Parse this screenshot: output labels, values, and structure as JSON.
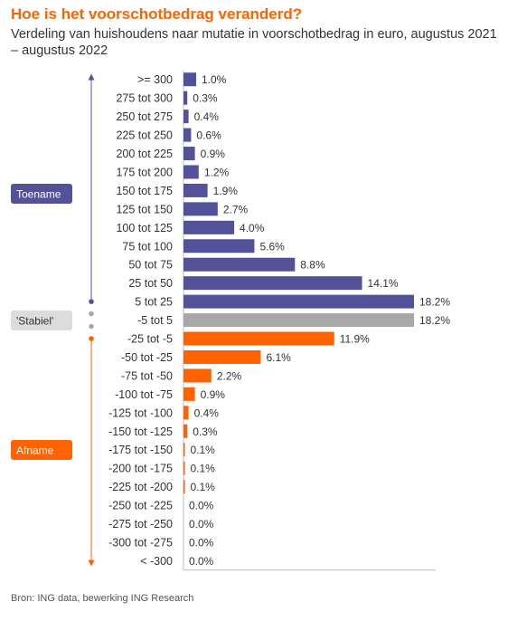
{
  "title": "Hoe is het voorschotbedrag veranderd?",
  "subtitle": "Verdeling van huishoudens naar mutatie in voorschotbedrag in euro, augustus 2021 – augustus 2022",
  "source": "Bron: ING data, bewerking ING Research",
  "colors": {
    "increase": "#525199",
    "stable": "#A8A8A8",
    "decrease": "#FF6200",
    "title": "#FF6200",
    "axis": "#BDBDBD"
  },
  "chart_data": {
    "type": "bar",
    "orientation": "horizontal",
    "unit": "%",
    "xlim": [
      0,
      25
    ],
    "grid": false,
    "groups": [
      {
        "name": "Toename",
        "color": "#525199",
        "categories": [
          ">= 300",
          "275 tot 300",
          "250 tot 275",
          "225 tot 250",
          "200 tot 225",
          "175 tot 200",
          "150 tot 175",
          "125 tot 150",
          "100 tot 125",
          "75 tot 100",
          "50 tot 75",
          "25 tot 50",
          "5 tot 25"
        ],
        "values": [
          1.0,
          0.3,
          0.4,
          0.6,
          0.9,
          1.2,
          1.9,
          2.7,
          4.0,
          5.6,
          8.8,
          14.1,
          18.2
        ]
      },
      {
        "name": "'Stabiel'",
        "color": "#A8A8A8",
        "categories": [
          "-5 tot 5"
        ],
        "values": [
          18.2
        ]
      },
      {
        "name": "Afname",
        "color": "#FF6200",
        "categories": [
          "-25 tot -5",
          "-50 tot -25",
          "-75 tot -50",
          "-100 tot -75",
          "-125 tot -100",
          "-150 tot -125",
          "-175 tot -150",
          "-200 tot -175",
          "-225 tot -200",
          "-250 tot -225",
          "-275 tot -250",
          "-300 tot -275",
          "< -300"
        ],
        "values": [
          11.9,
          6.1,
          2.2,
          0.9,
          0.4,
          0.3,
          0.1,
          0.1,
          0.1,
          0.0,
          0.0,
          0.0,
          0.0
        ]
      }
    ],
    "data_labels": {
      "increase": [
        "1.0%",
        "0.3%",
        "0.4%",
        "0.6%",
        "0.9%",
        "1.2%",
        "1.9%",
        "2.7%",
        "4.0%",
        "5.6%",
        "8.8%",
        "14.1%",
        "18.2%"
      ],
      "stable": [
        "18.2%"
      ],
      "decrease": [
        "11.9%",
        "6.1%",
        "2.2%",
        "0.9%",
        "0.4%",
        "0.3%",
        "0.1%",
        "0.1%",
        "0.1%",
        "0.0%",
        "0.0%",
        "0.0%",
        "0.0%"
      ]
    }
  }
}
